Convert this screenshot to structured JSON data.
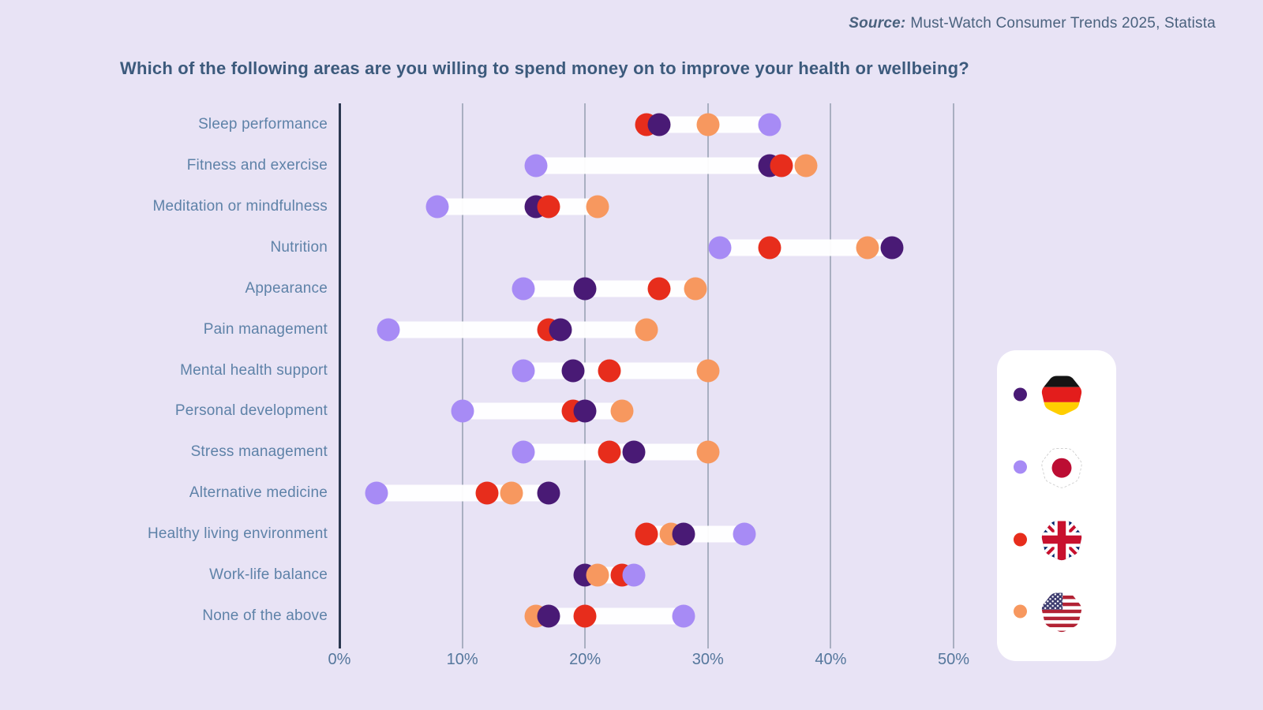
{
  "source": {
    "label": "Source:",
    "text": "Must-Watch Consumer Trends 2025, Statista"
  },
  "title": "Which of the following areas are you willing to spend money on to improve your health or wellbeing?",
  "chart_data": {
    "type": "dot-plot",
    "title": "Which of the following areas are you willing to spend money on to improve your health or wellbeing?",
    "xlabel": "",
    "ylabel": "",
    "unit": "%",
    "x_min": 0,
    "x_max": 50,
    "grid": "vertical",
    "legend_position": "right",
    "x_ticks": [
      {
        "value": 0,
        "label": "0%"
      },
      {
        "value": 10,
        "label": "10%"
      },
      {
        "value": 20,
        "label": "20%"
      },
      {
        "value": 30,
        "label": "30%"
      },
      {
        "value": 40,
        "label": "40%"
      },
      {
        "value": 50,
        "label": "50%"
      }
    ],
    "series_colors": {
      "germany": "#491A75",
      "japan": "#A78BF5",
      "uk": "#E72D1C",
      "usa": "#F7985F"
    },
    "bar_color": "#FFFFFF",
    "background_color": "#E8E3F5",
    "legend": [
      {
        "key": "germany",
        "icon": "germany-flag-icon"
      },
      {
        "key": "japan",
        "icon": "japan-flag-icon"
      },
      {
        "key": "uk",
        "icon": "uk-flag-icon"
      },
      {
        "key": "usa",
        "icon": "usa-flag-icon"
      }
    ],
    "rows": [
      {
        "category": "Sleep performance",
        "points": [
          {
            "k": "uk",
            "v": 25
          },
          {
            "k": "germany",
            "v": 26
          },
          {
            "k": "usa",
            "v": 30
          },
          {
            "k": "japan",
            "v": 35
          }
        ]
      },
      {
        "category": "Fitness and exercise",
        "points": [
          {
            "k": "japan",
            "v": 16
          },
          {
            "k": "germany",
            "v": 35
          },
          {
            "k": "uk",
            "v": 36
          },
          {
            "k": "usa",
            "v": 38
          }
        ]
      },
      {
        "category": "Meditation or mindfulness",
        "points": [
          {
            "k": "japan",
            "v": 8
          },
          {
            "k": "germany",
            "v": 16
          },
          {
            "k": "uk",
            "v": 17
          },
          {
            "k": "usa",
            "v": 21
          }
        ]
      },
      {
        "category": "Nutrition",
        "points": [
          {
            "k": "japan",
            "v": 31
          },
          {
            "k": "uk",
            "v": 35
          },
          {
            "k": "usa",
            "v": 43
          },
          {
            "k": "germany",
            "v": 45
          }
        ]
      },
      {
        "category": "Appearance",
        "points": [
          {
            "k": "japan",
            "v": 15
          },
          {
            "k": "germany",
            "v": 20
          },
          {
            "k": "uk",
            "v": 26
          },
          {
            "k": "usa",
            "v": 29
          }
        ]
      },
      {
        "category": "Pain management",
        "points": [
          {
            "k": "japan",
            "v": 4
          },
          {
            "k": "uk",
            "v": 17
          },
          {
            "k": "germany",
            "v": 18
          },
          {
            "k": "usa",
            "v": 25
          }
        ]
      },
      {
        "category": "Mental health support",
        "points": [
          {
            "k": "japan",
            "v": 15
          },
          {
            "k": "germany",
            "v": 19
          },
          {
            "k": "uk",
            "v": 22
          },
          {
            "k": "usa",
            "v": 30
          }
        ]
      },
      {
        "category": "Personal development",
        "points": [
          {
            "k": "japan",
            "v": 10
          },
          {
            "k": "uk",
            "v": 19
          },
          {
            "k": "germany",
            "v": 20
          },
          {
            "k": "usa",
            "v": 23
          }
        ]
      },
      {
        "category": "Stress management",
        "points": [
          {
            "k": "japan",
            "v": 15
          },
          {
            "k": "uk",
            "v": 22
          },
          {
            "k": "germany",
            "v": 24
          },
          {
            "k": "usa",
            "v": 30
          }
        ]
      },
      {
        "category": "Alternative medicine",
        "points": [
          {
            "k": "japan",
            "v": 3
          },
          {
            "k": "uk",
            "v": 12
          },
          {
            "k": "usa",
            "v": 14
          },
          {
            "k": "germany",
            "v": 17
          }
        ]
      },
      {
        "category": "Healthy living environment",
        "points": [
          {
            "k": "uk",
            "v": 25
          },
          {
            "k": "usa",
            "v": 27
          },
          {
            "k": "germany",
            "v": 28
          },
          {
            "k": "japan",
            "v": 33
          }
        ]
      },
      {
        "category": "Work-life balance",
        "points": [
          {
            "k": "germany",
            "v": 20
          },
          {
            "k": "usa",
            "v": 21
          },
          {
            "k": "uk",
            "v": 23
          },
          {
            "k": "japan",
            "v": 24
          }
        ]
      },
      {
        "category": "None of the above",
        "points": [
          {
            "k": "usa",
            "v": 16
          },
          {
            "k": "germany",
            "v": 17
          },
          {
            "k": "uk",
            "v": 20
          },
          {
            "k": "japan",
            "v": 28
          }
        ]
      }
    ]
  }
}
